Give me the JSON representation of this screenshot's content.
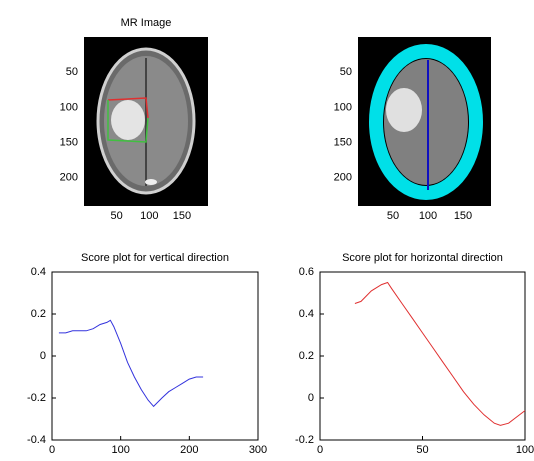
{
  "chart_data": [
    {
      "type": "image",
      "title": "MR Image",
      "xlim": [
        0,
        190
      ],
      "ylim": [
        0,
        240
      ],
      "xticks": [
        50,
        100,
        150
      ],
      "yticks": [
        50,
        100,
        150,
        200
      ]
    },
    {
      "type": "image",
      "xlim": [
        0,
        190
      ],
      "ylim": [
        0,
        240
      ],
      "xticks": [
        50,
        100,
        150
      ],
      "yticks": [
        50,
        100,
        150,
        200
      ]
    },
    {
      "type": "line",
      "title": "Score plot for vertical direction",
      "xlim": [
        0,
        300
      ],
      "ylim": [
        -0.4,
        0.4
      ],
      "xticks": [
        0,
        100,
        200,
        300
      ],
      "yticks": [
        -0.4,
        -0.2,
        0,
        0.2,
        0.4
      ],
      "color": "#3333dd",
      "x": [
        10,
        20,
        30,
        40,
        50,
        60,
        70,
        80,
        85,
        90,
        100,
        110,
        120,
        130,
        140,
        148,
        160,
        170,
        180,
        190,
        200,
        210,
        220
      ],
      "values": [
        0.11,
        0.11,
        0.12,
        0.12,
        0.12,
        0.13,
        0.15,
        0.16,
        0.17,
        0.14,
        0.06,
        -0.03,
        -0.1,
        -0.16,
        -0.21,
        -0.24,
        -0.2,
        -0.17,
        -0.15,
        -0.13,
        -0.11,
        -0.1,
        -0.1
      ]
    },
    {
      "type": "line",
      "title": "Score plot for horizontal direction",
      "xlim": [
        0,
        100
      ],
      "ylim": [
        -0.2,
        0.6
      ],
      "xticks": [
        0,
        50,
        100
      ],
      "yticks": [
        -0.2,
        0,
        0.2,
        0.4,
        0.6
      ],
      "color": "#e03030",
      "x": [
        17,
        20,
        25,
        30,
        33,
        35,
        40,
        45,
        50,
        55,
        60,
        65,
        70,
        75,
        80,
        85,
        88,
        92,
        96,
        100
      ],
      "values": [
        0.45,
        0.46,
        0.51,
        0.54,
        0.55,
        0.52,
        0.45,
        0.38,
        0.31,
        0.24,
        0.17,
        0.1,
        0.03,
        -0.03,
        -0.08,
        -0.12,
        -0.13,
        -0.12,
        -0.09,
        -0.06
      ]
    }
  ]
}
